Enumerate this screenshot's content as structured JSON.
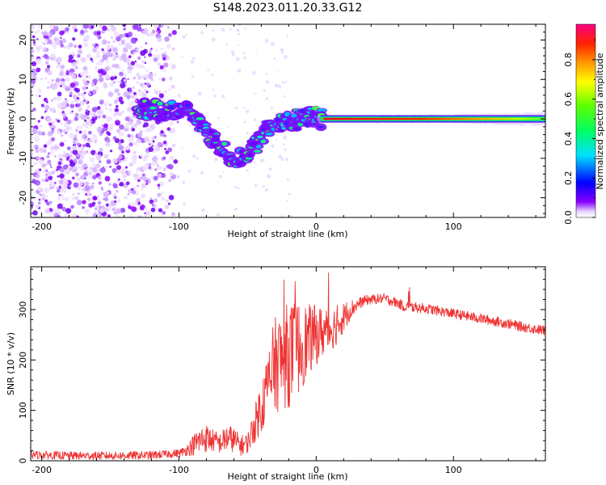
{
  "title": "S148.2023.011.20.33.G12",
  "chart_data": [
    {
      "type": "heatmap",
      "xlabel": "Height of straight line (km)",
      "ylabel": "Frequency (Hz)",
      "xlim": [
        -208,
        167
      ],
      "ylim": [
        -25,
        24
      ],
      "xticks": [
        -200,
        -100,
        0,
        100
      ],
      "yticks": [
        -20,
        -10,
        0,
        10,
        20
      ],
      "colorbar": {
        "label": "Normalized spectral amplitude",
        "range": [
          0,
          1
        ],
        "ticks": [
          "0.0",
          "0.2",
          "0.4",
          "0.6",
          "0.8"
        ]
      },
      "ridge": {
        "description_points_x": [
          -130,
          -120,
          -110,
          -100,
          -90,
          -80,
          -70,
          -60,
          -50,
          -42,
          -35,
          -28,
          -20,
          -12,
          -5,
          0,
          5,
          50,
          100,
          167
        ],
        "description_points_y": [
          2.5,
          2.5,
          2,
          2,
          1.5,
          -3,
          -7,
          -10,
          -9,
          -6,
          -2,
          -1,
          -1,
          0,
          1,
          1,
          0,
          0,
          0,
          0
        ]
      }
    },
    {
      "type": "line",
      "xlabel": "Height of straight line (km)",
      "ylabel": "SNR (10 * v/v)",
      "xlim": [
        -208,
        167
      ],
      "ylim": [
        0,
        385
      ],
      "xticks": [
        -200,
        -100,
        0,
        100
      ],
      "yticks": [
        0,
        100,
        200,
        300
      ],
      "series": [
        {
          "name": "SNR",
          "color": "#ee3333",
          "x": [
            -208,
            -180,
            -150,
            -120,
            -100,
            -95,
            -90,
            -85,
            -80,
            -75,
            -70,
            -65,
            -60,
            -55,
            -50,
            -45,
            -40,
            -35,
            -30,
            -25,
            -20,
            -15,
            -10,
            -5,
            0,
            5,
            10,
            15,
            20,
            25,
            30,
            35,
            40,
            50,
            60,
            65,
            70,
            80,
            100,
            120,
            140,
            150,
            167
          ],
          "y": [
            12,
            10,
            10,
            11,
            15,
            20,
            30,
            40,
            45,
            40,
            35,
            45,
            42,
            30,
            35,
            70,
            110,
            150,
            190,
            200,
            210,
            220,
            230,
            240,
            250,
            255,
            260,
            270,
            285,
            300,
            310,
            318,
            320,
            322,
            312,
            305,
            305,
            302,
            292,
            282,
            272,
            266,
            258
          ],
          "amplitude": [
            8,
            8,
            8,
            8,
            8,
            10,
            20,
            28,
            28,
            22,
            20,
            28,
            25,
            20,
            20,
            35,
            55,
            75,
            95,
            100,
            105,
            100,
            85,
            70,
            60,
            50,
            45,
            40,
            30,
            20,
            12,
            10,
            10,
            10,
            10,
            10,
            10,
            10,
            10,
            10,
            10,
            10,
            10
          ]
        }
      ]
    }
  ]
}
